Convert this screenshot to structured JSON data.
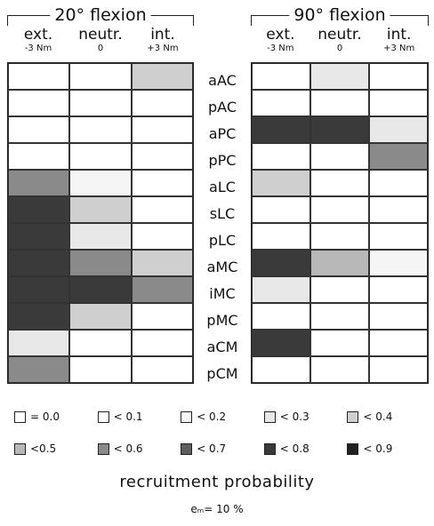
{
  "panels": [
    {
      "title": "20° flexion",
      "columns": [
        {
          "name": "ext.",
          "sub": "-3 Nm"
        },
        {
          "name": "neutr.",
          "sub": "0"
        },
        {
          "name": "int.",
          "sub": "+3 Nm"
        }
      ],
      "rows": [
        [
          0,
          0,
          4
        ],
        [
          0,
          0,
          0
        ],
        [
          0,
          0,
          0
        ],
        [
          0,
          0,
          0
        ],
        [
          6,
          2,
          0
        ],
        [
          8,
          4,
          0
        ],
        [
          8,
          3,
          0
        ],
        [
          8,
          6,
          4
        ],
        [
          8,
          8,
          6
        ],
        [
          8,
          4,
          0
        ],
        [
          3,
          0,
          0
        ],
        [
          6,
          0,
          0
        ]
      ]
    },
    {
      "title": "90° flexion",
      "columns": [
        {
          "name": "ext.",
          "sub": "-3 Nm"
        },
        {
          "name": "neutr.",
          "sub": "0"
        },
        {
          "name": "int.",
          "sub": "+3 Nm"
        }
      ],
      "rows": [
        [
          0,
          3,
          0
        ],
        [
          0,
          0,
          0
        ],
        [
          8,
          8,
          3
        ],
        [
          0,
          0,
          6
        ],
        [
          4,
          0,
          0
        ],
        [
          0,
          0,
          0
        ],
        [
          0,
          0,
          0
        ],
        [
          8,
          5,
          2
        ],
        [
          3,
          0,
          0
        ],
        [
          0,
          0,
          0
        ],
        [
          8,
          0,
          0
        ],
        [
          0,
          0,
          0
        ]
      ]
    }
  ],
  "row_labels": [
    "aAC",
    "pAC",
    "aPC",
    "pPC",
    "aLC",
    "sLC",
    "pLC",
    "aMC",
    "iMC",
    "pMC",
    "aCM",
    "pCM"
  ],
  "legend": [
    {
      "label": "= 0.0",
      "color": "#ffffff"
    },
    {
      "label": "< 0.1",
      "color": "#ffffff"
    },
    {
      "label": "< 0.2",
      "color": "#f5f5f5"
    },
    {
      "label": "< 0.3",
      "color": "#e8e8e8"
    },
    {
      "label": "< 0.4",
      "color": "#cfcfcf"
    },
    {
      "label": "<0.5",
      "color": "#b8b8b8"
    },
    {
      "label": "< 0.6",
      "color": "#8a8a8a"
    },
    {
      "label": "< 0.7",
      "color": "#5e5e5e"
    },
    {
      "label": "< 0.8",
      "color": "#3a3a3a"
    },
    {
      "label": "< 0.9",
      "color": "#222222"
    }
  ],
  "footer": {
    "label": "recruitment probability",
    "equation": "eₘ= 10 %"
  }
}
